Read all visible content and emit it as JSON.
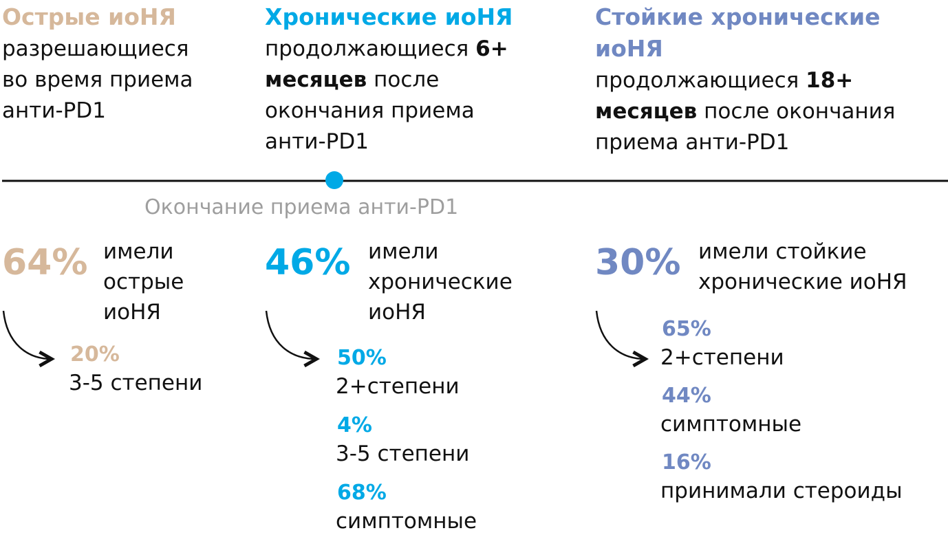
{
  "columns": [
    {
      "color": "#d6b89b",
      "title": [
        "Острые иоНЯ"
      ],
      "description": [
        [
          {
            "text": "разрешающиеся"
          }
        ],
        [
          {
            "text": "во время приема"
          }
        ],
        [
          {
            "text": "анти-PD1"
          }
        ]
      ],
      "stat": "64%",
      "stat_text": [
        "имели",
        "острые",
        "иоНЯ"
      ],
      "details": [
        {
          "value": "20%",
          "label": "3-5 степени"
        }
      ]
    },
    {
      "color": "#00a9e6",
      "title": [
        "Хронические иоНЯ"
      ],
      "description": [
        [
          {
            "text": "продолжающиеся"
          },
          {
            "text": "6+",
            "bold": true
          }
        ],
        [
          {
            "text": "месяцев",
            "bold": true
          },
          {
            "text": "после"
          }
        ],
        [
          {
            "text": "окончания приема"
          }
        ],
        [
          {
            "text": "анти-PD1"
          }
        ]
      ],
      "stat": "46%",
      "stat_text": [
        "имели",
        "хронические",
        "иоНЯ"
      ],
      "details": [
        {
          "value": "50%",
          "label": "2+степени"
        },
        {
          "value": "4%",
          "label": "3-5 степени"
        },
        {
          "value": "68%",
          "label": "симптомные"
        }
      ]
    },
    {
      "color": "#7088c2",
      "title": [
        "Стойкие хронические",
        "иоНЯ"
      ],
      "description": [
        [
          {
            "text": "продолжающиеся"
          },
          {
            "text": "18+",
            "bold": true
          }
        ],
        [
          {
            "text": "месяцев",
            "bold": true
          },
          {
            "text": "после окончания"
          }
        ],
        [
          {
            "text": "приема анти-PD1"
          }
        ]
      ],
      "stat": "30%",
      "stat_text": [
        "имели стойкие",
        "хронические иоНЯ"
      ],
      "details": [
        {
          "value": "65%",
          "label": "2+степени"
        },
        {
          "value": "44%",
          "label": "симптомные"
        },
        {
          "value": "16%",
          "label": "принимали стероиды"
        }
      ]
    }
  ],
  "timeline": {
    "label": "Окончание приема анти-PD1"
  }
}
